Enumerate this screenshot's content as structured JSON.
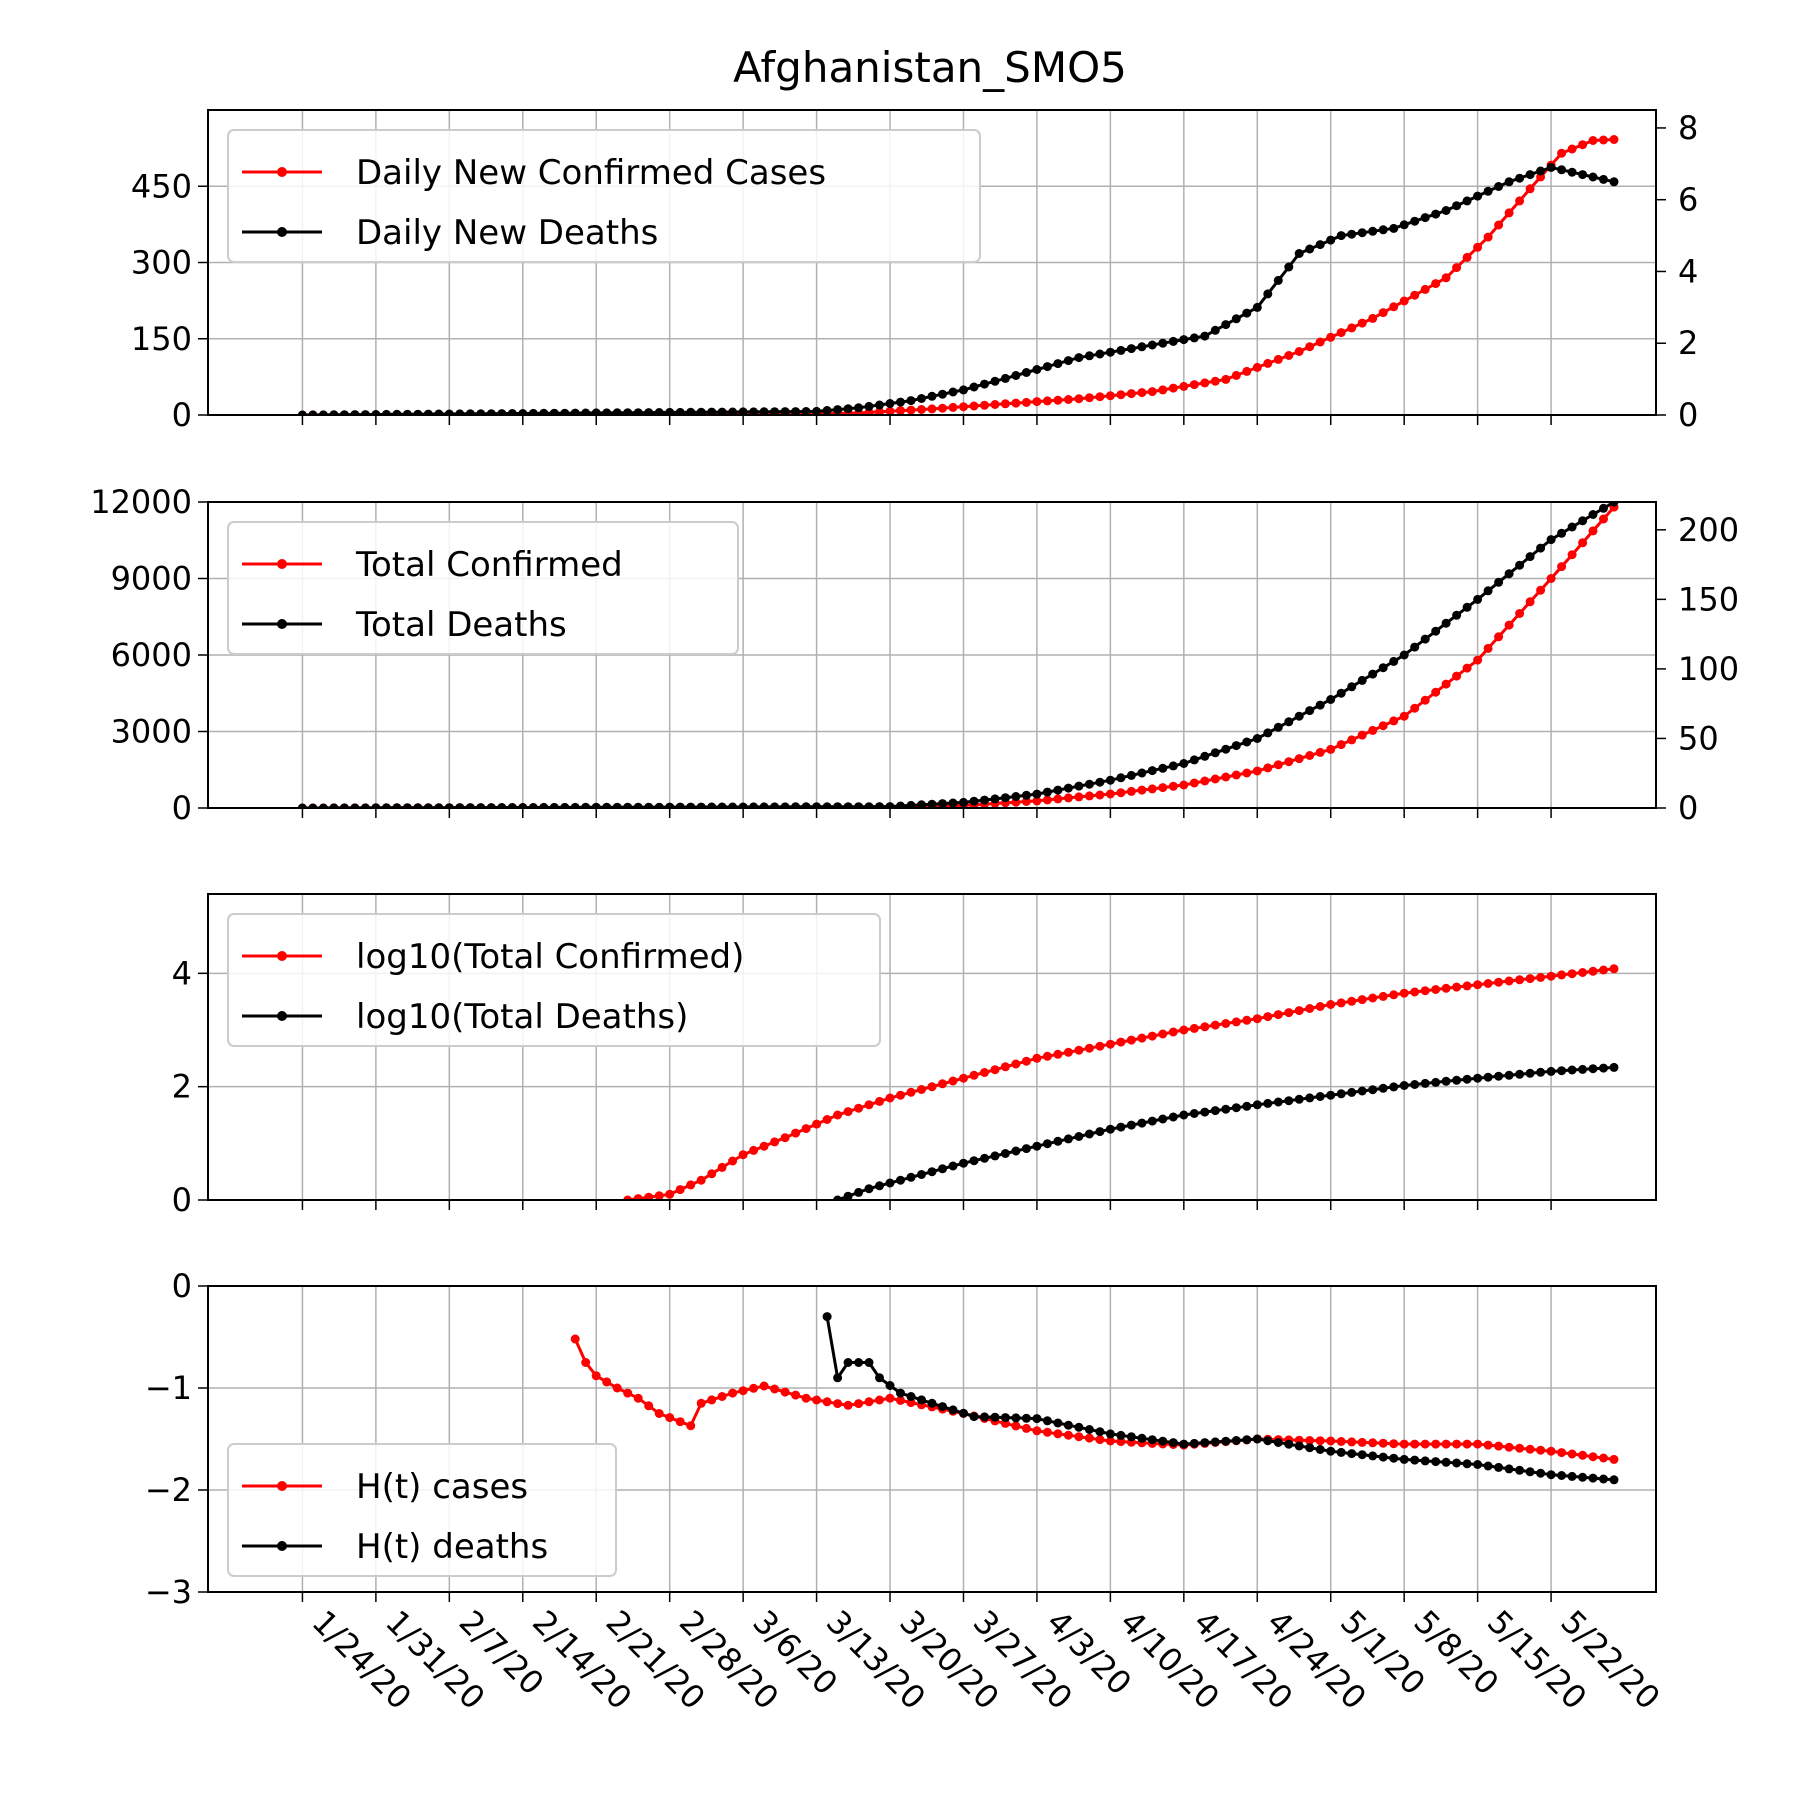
{
  "title": "Afghanistan_SMO5",
  "colors": {
    "cases": "#ff0000",
    "deaths": "#000000",
    "grid": "#b0b0b0"
  },
  "x_dates": [
    "1/24/20",
    "1/31/20",
    "2/7/20",
    "2/14/20",
    "2/21/20",
    "2/28/20",
    "3/6/20",
    "3/13/20",
    "3/20/20",
    "3/27/20",
    "4/3/20",
    "4/10/20",
    "4/17/20",
    "4/24/20",
    "5/1/20",
    "5/8/20",
    "5/15/20",
    "5/22/20"
  ],
  "chart_data": [
    {
      "type": "line",
      "title": "Afghanistan_SMO5",
      "grid": true,
      "legend_position": "top-left",
      "x_type": "date",
      "xlim": [
        "1/15/20",
        "6/1/20"
      ],
      "ylim_left": [
        0,
        600
      ],
      "ylim_right": [
        0,
        8.5
      ],
      "yticks_left": [
        "0",
        "150",
        "300",
        "450"
      ],
      "yticks_right": [
        "0",
        "2",
        "4",
        "6",
        "8"
      ],
      "series": [
        {
          "name": "Daily New Confirmed Cases",
          "axis": "left",
          "points": [
            [
              "1/24/20",
              0
            ],
            [
              "3/10/20",
              1
            ],
            [
              "3/17/20",
              4
            ],
            [
              "3/24/20",
              12
            ],
            [
              "3/31/20",
              22
            ],
            [
              "4/7/20",
              32
            ],
            [
              "4/14/20",
              46
            ],
            [
              "4/21/20",
              70
            ],
            [
              "4/28/20",
              125
            ],
            [
              "5/5/20",
              190
            ],
            [
              "5/12/20",
              270
            ],
            [
              "5/16/20",
              350
            ],
            [
              "5/20/20",
              445
            ],
            [
              "5/23/20",
              515
            ],
            [
              "5/26/20",
              540
            ],
            [
              "5/28/20",
              542
            ]
          ]
        },
        {
          "name": "Daily New Deaths",
          "axis": "right",
          "points": [
            [
              "1/24/20",
              0
            ],
            [
              "3/13/20",
              0.1
            ],
            [
              "3/17/20",
              0.2
            ],
            [
              "3/22/20",
              0.4
            ],
            [
              "3/27/20",
              0.7
            ],
            [
              "4/1/20",
              1.1
            ],
            [
              "4/7/20",
              1.6
            ],
            [
              "4/13/20",
              1.9
            ],
            [
              "4/19/20",
              2.2
            ],
            [
              "4/24/20",
              3.0
            ],
            [
              "4/28/20",
              4.5
            ],
            [
              "5/2/20",
              5.0
            ],
            [
              "5/7/20",
              5.2
            ],
            [
              "5/12/20",
              5.7
            ],
            [
              "5/18/20",
              6.5
            ],
            [
              "5/22/20",
              6.9
            ],
            [
              "5/25/20",
              6.7
            ],
            [
              "5/28/20",
              6.5
            ]
          ]
        }
      ]
    },
    {
      "type": "line",
      "grid": true,
      "legend_position": "top-left",
      "x_type": "date",
      "xlim": [
        "1/15/20",
        "6/1/20"
      ],
      "ylim_left": [
        0,
        12000
      ],
      "ylim_right": [
        0,
        220
      ],
      "yticks_left": [
        "0",
        "3000",
        "6000",
        "9000",
        "12000"
      ],
      "yticks_right": [
        "0",
        "50",
        "100",
        "150",
        "200"
      ],
      "series": [
        {
          "name": "Total Confirmed",
          "axis": "left",
          "points": [
            [
              "1/24/20",
              0
            ],
            [
              "3/20/20",
              40
            ],
            [
              "3/27/20",
              100
            ],
            [
              "4/3/20",
              280
            ],
            [
              "4/10/20",
              550
            ],
            [
              "4/17/20",
              900
            ],
            [
              "4/24/20",
              1450
            ],
            [
              "5/1/20",
              2300
            ],
            [
              "5/8/20",
              3600
            ],
            [
              "5/15/20",
              5800
            ],
            [
              "5/22/20",
              9000
            ],
            [
              "5/28/20",
              11800
            ]
          ]
        },
        {
          "name": "Total Deaths",
          "axis": "right",
          "points": [
            [
              "1/24/20",
              0
            ],
            [
              "3/20/20",
              1
            ],
            [
              "3/27/20",
              4
            ],
            [
              "4/3/20",
              10
            ],
            [
              "4/10/20",
              20
            ],
            [
              "4/17/20",
              32
            ],
            [
              "4/24/20",
              50
            ],
            [
              "5/1/20",
              78
            ],
            [
              "5/8/20",
              110
            ],
            [
              "5/15/20",
              150
            ],
            [
              "5/22/20",
              193
            ],
            [
              "5/28/20",
              220
            ]
          ]
        }
      ]
    },
    {
      "type": "line",
      "grid": true,
      "legend_position": "top-left",
      "x_type": "date",
      "xlim": [
        "1/15/20",
        "6/1/20"
      ],
      "ylim": [
        0,
        5.4
      ],
      "yticks": [
        "0",
        "2",
        "4"
      ],
      "series": [
        {
          "name": "log10(Total Confirmed)",
          "points": [
            [
              "2/24/20",
              0
            ],
            [
              "2/28/20",
              0.1
            ],
            [
              "3/2/20",
              0.35
            ],
            [
              "3/6/20",
              0.8
            ],
            [
              "3/10/20",
              1.1
            ],
            [
              "3/15/20",
              1.5
            ],
            [
              "3/20/20",
              1.8
            ],
            [
              "3/27/20",
              2.15
            ],
            [
              "4/3/20",
              2.5
            ],
            [
              "4/10/20",
              2.75
            ],
            [
              "4/17/20",
              3.0
            ],
            [
              "4/24/20",
              3.2
            ],
            [
              "5/1/20",
              3.45
            ],
            [
              "5/8/20",
              3.65
            ],
            [
              "5/15/20",
              3.8
            ],
            [
              "5/22/20",
              3.95
            ],
            [
              "5/28/20",
              4.08
            ]
          ]
        },
        {
          "name": "log10(Total Deaths)",
          "points": [
            [
              "3/15/20",
              0
            ],
            [
              "3/18/20",
              0.2
            ],
            [
              "3/22/20",
              0.4
            ],
            [
              "3/27/20",
              0.65
            ],
            [
              "4/3/20",
              0.95
            ],
            [
              "4/10/20",
              1.25
            ],
            [
              "4/17/20",
              1.5
            ],
            [
              "4/24/20",
              1.68
            ],
            [
              "5/1/20",
              1.85
            ],
            [
              "5/8/20",
              2.02
            ],
            [
              "5/15/20",
              2.15
            ],
            [
              "5/22/20",
              2.27
            ],
            [
              "5/28/20",
              2.34
            ]
          ]
        }
      ]
    },
    {
      "type": "line",
      "grid": true,
      "legend_position": "bottom-left",
      "x_type": "date",
      "xlim": [
        "1/15/20",
        "6/1/20"
      ],
      "ylim": [
        -3,
        0
      ],
      "yticks": [
        "0",
        "−1",
        "−2",
        "−3"
      ],
      "series": [
        {
          "name": "H(t) cases",
          "points": [
            [
              "2/19/20",
              -0.52
            ],
            [
              "2/20/20",
              -0.75
            ],
            [
              "2/21/20",
              -0.88
            ],
            [
              "2/23/20",
              -1.0
            ],
            [
              "2/25/20",
              -1.1
            ],
            [
              "2/27/20",
              -1.25
            ],
            [
              "3/1/20",
              -1.37
            ],
            [
              "3/2/20",
              -1.15
            ],
            [
              "3/5/20",
              -1.05
            ],
            [
              "3/8/20",
              -0.98
            ],
            [
              "3/12/20",
              -1.1
            ],
            [
              "3/16/20",
              -1.17
            ],
            [
              "3/20/20",
              -1.1
            ],
            [
              "3/27/20",
              -1.25
            ],
            [
              "4/3/20",
              -1.42
            ],
            [
              "4/10/20",
              -1.52
            ],
            [
              "4/17/20",
              -1.56
            ],
            [
              "4/24/20",
              -1.5
            ],
            [
              "5/1/20",
              -1.52
            ],
            [
              "5/8/20",
              -1.55
            ],
            [
              "5/15/20",
              -1.55
            ],
            [
              "5/22/20",
              -1.62
            ],
            [
              "5/28/20",
              -1.7
            ]
          ]
        },
        {
          "name": "H(t) deaths",
          "points": [
            [
              "3/14/20",
              -0.3
            ],
            [
              "3/15/20",
              -0.9
            ],
            [
              "3/16/20",
              -0.75
            ],
            [
              "3/18/20",
              -0.75
            ],
            [
              "3/19/20",
              -0.9
            ],
            [
              "3/21/20",
              -1.05
            ],
            [
              "3/24/20",
              -1.15
            ],
            [
              "3/28/20",
              -1.28
            ],
            [
              "4/3/20",
              -1.3
            ],
            [
              "4/10/20",
              -1.45
            ],
            [
              "4/17/20",
              -1.55
            ],
            [
              "4/24/20",
              -1.5
            ],
            [
              "5/1/20",
              -1.62
            ],
            [
              "5/8/20",
              -1.7
            ],
            [
              "5/15/20",
              -1.75
            ],
            [
              "5/22/20",
              -1.85
            ],
            [
              "5/28/20",
              -1.9
            ]
          ]
        }
      ]
    }
  ]
}
